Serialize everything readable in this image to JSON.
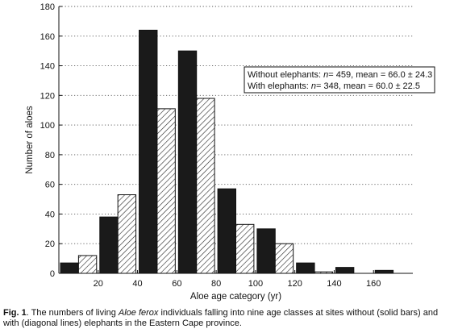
{
  "chart_data": {
    "type": "bar",
    "xlabel": "Aloe age category (yr)",
    "ylabel": "Number of aloes",
    "ylim": [
      0,
      180
    ],
    "yticks": [
      0,
      20,
      40,
      60,
      80,
      100,
      120,
      140,
      160,
      180
    ],
    "xlim": [
      0,
      180
    ],
    "xticks": [
      20,
      40,
      60,
      80,
      100,
      120,
      140,
      160
    ],
    "bin_width": 20,
    "categories": [
      "0-20",
      "20-40",
      "40-60",
      "60-80",
      "80-100",
      "100-120",
      "120-140",
      "140-160",
      "160-180"
    ],
    "grid": "horizontal dotted",
    "legend_position": "right",
    "series": [
      {
        "name": "Without elephants",
        "style": "solid",
        "color": "#1a1a1a",
        "values": [
          7,
          38,
          164,
          150,
          57,
          30,
          7,
          4,
          2
        ]
      },
      {
        "name": "With elephants",
        "style": "diagonal lines",
        "color": "#ffffff",
        "values": [
          12,
          53,
          111,
          118,
          33,
          20,
          1,
          0,
          0
        ]
      }
    ],
    "legend": {
      "without_prefix": "Without elephants: ",
      "without_n": "= 459, mean = 66.0 ± 24.3",
      "with_prefix": "With elephants: ",
      "with_n": "= 348, mean = 60.0 ± 22.5",
      "n_symbol": "n"
    }
  },
  "caption": {
    "fig_label": "Fig. 1",
    "text_before": ". The numbers of living ",
    "species": "Aloe ferox",
    "text_after": " individuals falling into nine age classes at sites without (solid bars) and with (diagonal lines) elephants in the Eastern Cape province."
  }
}
